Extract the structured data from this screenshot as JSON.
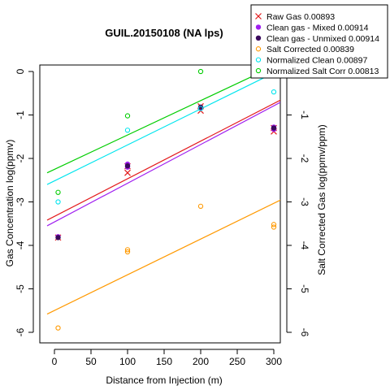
{
  "chart_data": {
    "type": "scatter",
    "title": "GUIL.20150108 (NA lps)",
    "xlabel": "Distance from Injection (m)",
    "ylabel": "Gas Concentration log(ppmv)",
    "ylabel_right": "Salt Corrected Gas log(ppmv/ppm)",
    "xlim": [
      -10,
      310
    ],
    "ylim": [
      -6.1,
      0.1
    ],
    "x_ticks": [
      0,
      50,
      100,
      150,
      200,
      250,
      300
    ],
    "y_ticks": [
      -6,
      -5,
      -4,
      -3,
      -2,
      -1,
      0
    ],
    "grid": false,
    "legend_position": "top-right",
    "series": [
      {
        "name": "Raw Gas 0.00893",
        "marker": "x",
        "color": "#e31a1c",
        "points": [
          [
            5,
            -3.82
          ],
          [
            100,
            -2.33
          ],
          [
            100,
            -2.18
          ],
          [
            200,
            -0.9
          ],
          [
            200,
            -0.8
          ],
          [
            300,
            -1.38
          ],
          [
            300,
            -1.3
          ]
        ],
        "fit": [
          [
            -10,
            -3.42
          ],
          [
            310,
            -0.65
          ]
        ]
      },
      {
        "name": "Clean gas - Mixed 0.00914",
        "marker": "dot",
        "color": "#a020f0",
        "points": [
          [
            5,
            -3.8
          ],
          [
            100,
            -2.2
          ],
          [
            100,
            -2.13
          ],
          [
            200,
            -0.84
          ],
          [
            300,
            -1.33
          ],
          [
            300,
            -1.28
          ]
        ],
        "fit": [
          [
            -10,
            -3.55
          ],
          [
            310,
            -0.7
          ]
        ]
      },
      {
        "name": "Clean gas - Unmixed 0.00914",
        "marker": "dot",
        "color": "#3a0a5c",
        "points": [
          [
            5,
            -3.82
          ],
          [
            100,
            -2.17
          ],
          [
            200,
            -0.82
          ],
          [
            300,
            -1.3
          ]
        ],
        "fit": null
      },
      {
        "name": "Salt Corrected 0.00839",
        "marker": "circle",
        "color": "#ff9900",
        "points": [
          [
            5,
            -5.9
          ],
          [
            100,
            -4.1
          ],
          [
            100,
            -4.15
          ],
          [
            200,
            -3.1
          ],
          [
            300,
            -3.52
          ],
          [
            300,
            -3.58
          ]
        ],
        "fit": [
          [
            -10,
            -5.58
          ],
          [
            310,
            -2.95
          ]
        ]
      },
      {
        "name": "Normalized Clean 0.00897",
        "marker": "circle",
        "color": "#00e5ee",
        "points": [
          [
            5,
            -3.0
          ],
          [
            100,
            -1.35
          ],
          [
            200,
            -0.85
          ],
          [
            300,
            -0.47
          ]
        ],
        "fit": [
          [
            -10,
            -2.6
          ],
          [
            310,
            0.05
          ]
        ]
      },
      {
        "name": "Normalized Salt Corr 0.00813",
        "marker": "circle",
        "color": "#00cd00",
        "points": [
          [
            5,
            -2.78
          ],
          [
            100,
            -1.02
          ],
          [
            200,
            0.0
          ]
        ],
        "fit": [
          [
            -10,
            -2.33
          ],
          [
            310,
            0.2
          ]
        ]
      }
    ]
  }
}
